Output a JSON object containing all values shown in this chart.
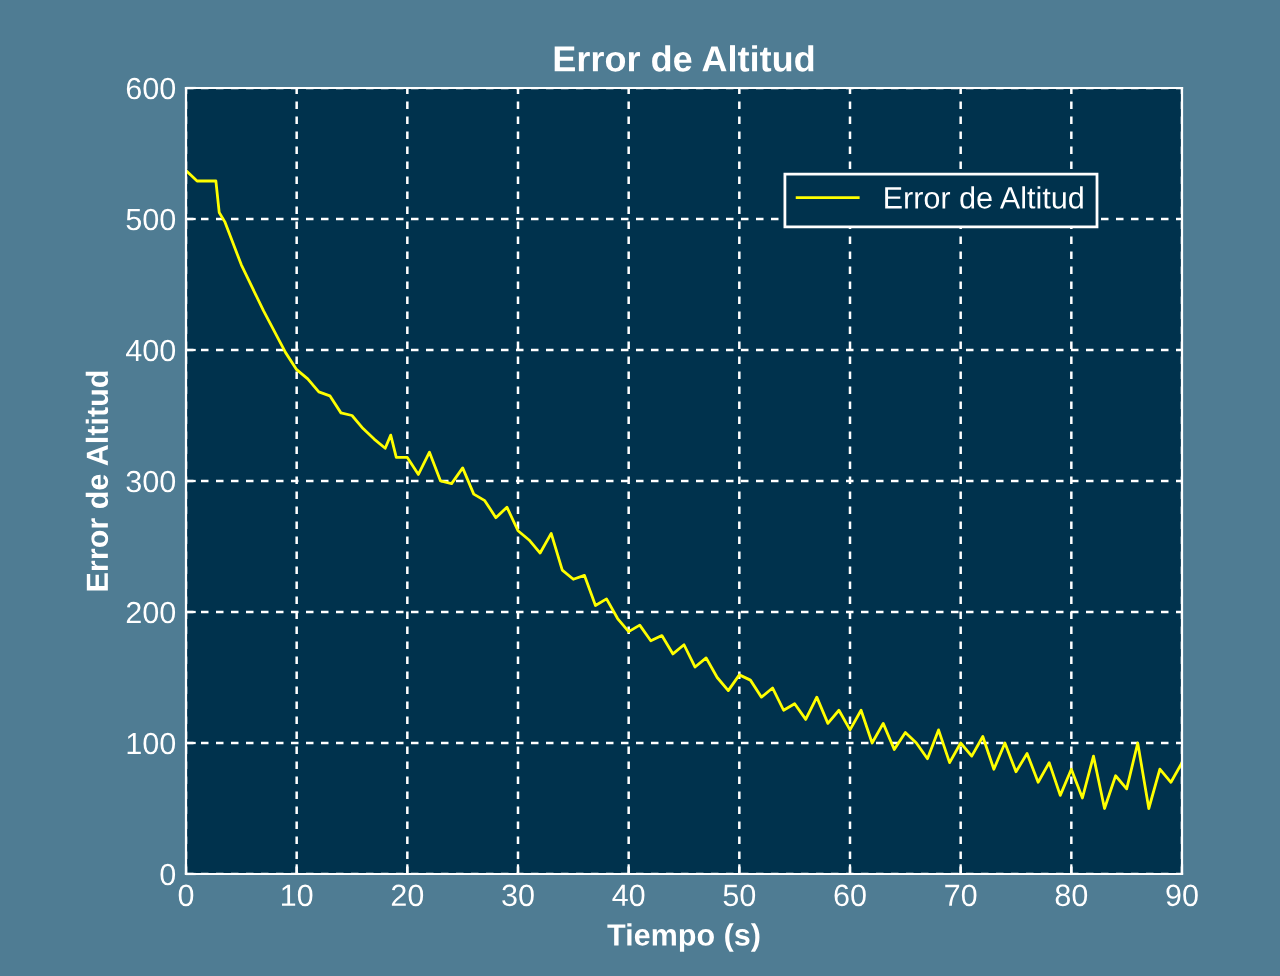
{
  "chart_data": {
    "type": "line",
    "title": "Error de Altitud",
    "xlabel": "Tiempo (s)",
    "ylabel": "Error de Altitud",
    "xlim": [
      0,
      90
    ],
    "xticks": [
      0,
      10,
      20,
      30,
      40,
      50,
      60,
      70,
      80,
      90
    ],
    "ylim": [
      0,
      600
    ],
    "yticks": [
      0,
      100,
      200,
      300,
      400,
      500,
      600
    ],
    "grid": true,
    "legend": "top right",
    "line_style": "solid",
    "marker": "none",
    "series": [
      {
        "name": "Error de Altitud",
        "color": "#ffff00",
        "x": [
          0,
          0.5,
          1,
          2.7,
          3,
          3.5,
          5,
          7,
          9,
          10,
          11,
          12,
          13,
          14,
          15,
          16,
          17,
          18,
          18.5,
          19,
          20,
          21,
          22,
          23,
          24,
          25,
          26,
          27,
          28,
          29,
          30,
          31,
          32,
          33,
          34,
          35,
          36,
          37,
          38,
          39,
          40,
          41,
          42,
          43,
          44,
          45,
          46,
          47,
          48,
          49,
          50,
          51,
          52,
          53,
          54,
          55,
          56,
          57,
          58,
          59,
          60,
          61,
          62,
          63,
          64,
          65,
          66,
          67,
          68,
          69,
          70,
          71,
          72,
          73,
          74,
          75,
          76,
          77,
          78,
          79,
          80,
          81,
          82,
          83,
          84,
          85,
          86,
          87,
          88,
          89,
          90
        ],
        "values": [
          537,
          533,
          529,
          529,
          505,
          498,
          465,
          430,
          398,
          385,
          378,
          368,
          365,
          352,
          350,
          340,
          332,
          325,
          335,
          318,
          318,
          305,
          322,
          300,
          298,
          310,
          290,
          285,
          272,
          280,
          262,
          255,
          245,
          260,
          232,
          225,
          228,
          205,
          210,
          195,
          185,
          190,
          178,
          182,
          168,
          175,
          158,
          165,
          150,
          140,
          152,
          148,
          135,
          142,
          125,
          130,
          118,
          135,
          115,
          125,
          110,
          125,
          100,
          115,
          95,
          108,
          100,
          88,
          110,
          85,
          100,
          90,
          105,
          80,
          100,
          78,
          92,
          70,
          85,
          60,
          80,
          58,
          90,
          50,
          75,
          65,
          100,
          50,
          80,
          70,
          85
        ]
      }
    ]
  }
}
